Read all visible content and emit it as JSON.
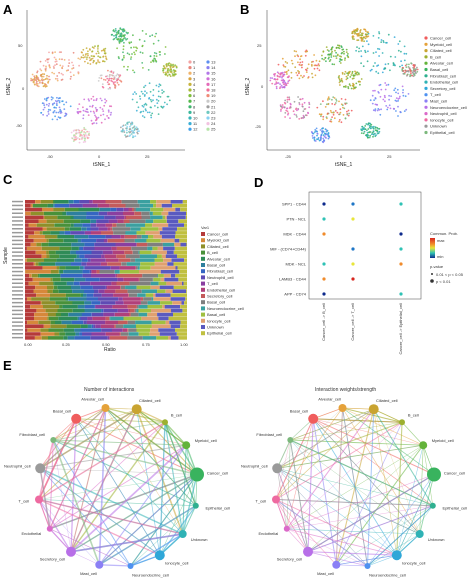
{
  "panels": {
    "A": {
      "label": "A",
      "xlabel": "tSNE_1",
      "ylabel": "tSNE_2",
      "xticks": [
        "-50",
        "0",
        "25"
      ],
      "yticks": [
        "50",
        "0",
        "-50"
      ],
      "legend": [
        "0",
        "1",
        "2",
        "3",
        "4",
        "5",
        "6",
        "7",
        "8",
        "9",
        "10",
        "11",
        "12",
        "13",
        "14",
        "15",
        "16",
        "17",
        "18",
        "19",
        "20",
        "21",
        "22",
        "23",
        "24",
        "25"
      ]
    },
    "B": {
      "label": "B",
      "xlabel": "tSNE_1",
      "ylabel": "tSNE_2",
      "xticks": [
        "-25",
        "0",
        "25"
      ],
      "yticks": [
        "25",
        "0",
        "-25"
      ],
      "legend": [
        "Cancer_cell",
        "Myeloid_cell",
        "Ciliated_cell",
        "B_cell",
        "Alveolar_cell",
        "Basal_cell",
        "Fibroblast_cell",
        "Endothelial_cell",
        "Secretory_cell",
        "T_cell",
        "Mast_cell",
        "Neuroendocrine_cell",
        "Neutrophil_cell",
        "Ionocyte_cell",
        "Unknown",
        "Epithelial_cell"
      ]
    },
    "C": {
      "label": "C",
      "xlabel": "Ratio",
      "ylabel": "Sample",
      "xticks": [
        "0.00",
        "0.25",
        "0.50",
        "0.75",
        "1.00"
      ],
      "legend_title": "Var1",
      "legend": [
        "Cancer_cell",
        "Myeloid_cell",
        "Ciliated_cell",
        "B_cell",
        "Alveolar_cell",
        "Basal_cell",
        "Fibroblast_cell",
        "Neutrophil_cell",
        "T_cell",
        "Endothelial_cell",
        "Secretory_cell",
        "Basal_cell",
        "Neuroendocrine_cell",
        "Basal_cell",
        "Ionocyte_cell",
        "Unknown",
        "Epithelial_cell"
      ]
    },
    "D": {
      "label": "D",
      "rows": [
        "SPP1 - CD44",
        "PTN - NCL",
        "MDK - CD44 ",
        "MIF - (CD74+CD44)",
        "MDK - NCL",
        "LAMB3 - CD44",
        "APP - CD74"
      ],
      "cols": [
        "Cancer_cell -> B_cell",
        "Cancer_cell -> T_cell",
        "Cancer_cell -> Epithelial_cell"
      ],
      "legend_title": "Commun. Prob.",
      "legend_high": "max",
      "legend_low": "min",
      "pval_title": "p-value",
      "pval_items": [
        "0.01 < p < 0.05",
        "p < 0.01"
      ]
    },
    "E": {
      "label": "E",
      "left_title": "Number of interactions",
      "right_title": "Interaction weights/strength",
      "nodes": [
        "Basal_cell",
        "Alveolar_cell",
        "Ciliated_cell",
        "B_cell",
        "Myeloid_cell",
        "Cancer_cell",
        "Epithelial_cell",
        "Unknown",
        "Ionocyte_cell",
        "Neuroendocrine_cell",
        "Mast_cell",
        "Secretory_cell",
        "Endothelial",
        "T_cell",
        "Neutrophil_cell",
        "Fibroblast_cell"
      ]
    }
  },
  "colors": {
    "clusters": [
      "#f4a3a3",
      "#e8867a",
      "#f0b36a",
      "#d9a441",
      "#c7b33c",
      "#a8b936",
      "#7fbf3a",
      "#52b84a",
      "#3fb56e",
      "#3ab79a",
      "#37b5b9",
      "#39aed6",
      "#3f9fe8",
      "#5c8ef0",
      "#8a7ff0",
      "#b277e8",
      "#cf6fd8",
      "#e46ab9",
      "#ef6f98",
      "#f08a76",
      "#c9c9c9",
      "#9e9e9e",
      "#6ec8c0",
      "#88d1f2",
      "#f2c2e0",
      "#b6e3a8"
    ],
    "cells": [
      "#f05d5d",
      "#e5a23a",
      "#c9a431",
      "#9cb02f",
      "#63b33a",
      "#39b35e",
      "#2fb090",
      "#2fb2b5",
      "#2fa7d8",
      "#4e91f0",
      "#8b7ff5",
      "#b86fe8",
      "#db69c9",
      "#ee6aa0",
      "#9a9a9a",
      "#7cb87c"
    ],
    "heat": [
      "#0d2a8c",
      "#1e76c6",
      "#2fc2b5",
      "#e8e53a",
      "#f08b2b",
      "#d7261e"
    ]
  }
}
